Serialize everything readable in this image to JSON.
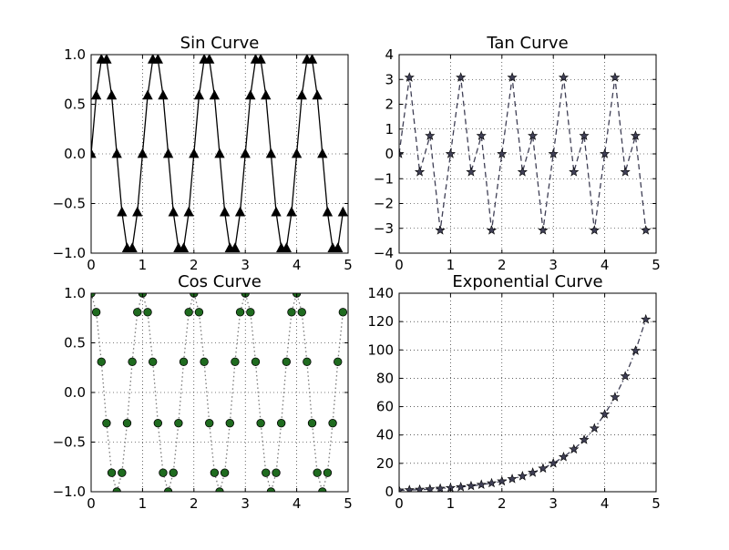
{
  "chart_data": [
    {
      "type": "line",
      "title": "Sin Curve",
      "xlabel": "",
      "ylabel": "",
      "xlim": [
        0,
        5
      ],
      "ylim": [
        -1.0,
        1.0
      ],
      "xticks": [
        0,
        1,
        2,
        3,
        4,
        5
      ],
      "yticks": [
        -1.0,
        -0.5,
        0.0,
        0.5,
        1.0
      ],
      "xtick_labels": [
        "0",
        "1",
        "2",
        "3",
        "4",
        "5"
      ],
      "ytick_labels": [
        "−1.0",
        "−0.5",
        "0.0",
        "0.5",
        "1.0"
      ],
      "grid": true,
      "series": [
        {
          "color": "#000000",
          "line_style": "solid",
          "marker": "triangle",
          "marker_color": "#000000",
          "x": [
            0.0,
            0.1,
            0.2,
            0.3,
            0.4,
            0.5,
            0.6,
            0.7,
            0.8,
            0.9,
            1.0,
            1.1,
            1.2,
            1.3,
            1.4,
            1.5,
            1.6,
            1.7,
            1.8,
            1.9,
            2.0,
            2.1,
            2.2,
            2.3,
            2.4,
            2.5,
            2.6,
            2.7,
            2.8,
            2.9,
            3.0,
            3.1,
            3.2,
            3.3,
            3.4,
            3.5,
            3.6,
            3.7,
            3.8,
            3.9,
            4.0,
            4.1,
            4.2,
            4.3,
            4.4,
            4.5,
            4.6,
            4.7,
            4.8,
            4.9
          ],
          "y": [
            0.0,
            0.588,
            0.951,
            0.951,
            0.588,
            0.0,
            -0.588,
            -0.951,
            -0.951,
            -0.588,
            0.0,
            0.588,
            0.951,
            0.951,
            0.588,
            0.0,
            -0.588,
            -0.951,
            -0.951,
            -0.588,
            0.0,
            0.588,
            0.951,
            0.951,
            0.588,
            0.0,
            -0.588,
            -0.951,
            -0.951,
            -0.588,
            0.0,
            0.588,
            0.951,
            0.951,
            0.588,
            0.0,
            -0.588,
            -0.951,
            -0.951,
            -0.588,
            0.0,
            0.588,
            0.951,
            0.951,
            0.588,
            0.0,
            -0.588,
            -0.951,
            -0.951,
            -0.588
          ]
        }
      ]
    },
    {
      "type": "line",
      "title": "Tan Curve",
      "xlabel": "",
      "ylabel": "",
      "xlim": [
        0,
        5
      ],
      "ylim": [
        -4,
        4
      ],
      "xticks": [
        0,
        1,
        2,
        3,
        4,
        5
      ],
      "yticks": [
        -4,
        -3,
        -2,
        -1,
        0,
        1,
        2,
        3,
        4
      ],
      "xtick_labels": [
        "0",
        "1",
        "2",
        "3",
        "4",
        "5"
      ],
      "ytick_labels": [
        "−4",
        "−3",
        "−2",
        "−1",
        "0",
        "1",
        "2",
        "3",
        "4"
      ],
      "grid": true,
      "series": [
        {
          "color": "#3f3f55",
          "line_style": "dashed",
          "marker": "star",
          "marker_color": "#3f3f55",
          "x": [
            0.0,
            0.2,
            0.4,
            0.6,
            0.8,
            1.0,
            1.2,
            1.4,
            1.6,
            1.8,
            2.0,
            2.2,
            2.4,
            2.6,
            2.8,
            3.0,
            3.2,
            3.4,
            3.6,
            3.8,
            4.0,
            4.2,
            4.4,
            4.6,
            4.8
          ],
          "y": [
            0.0,
            3.08,
            -0.73,
            0.73,
            -3.08,
            0.0,
            3.08,
            -0.73,
            0.73,
            -3.08,
            0.0,
            3.08,
            -0.73,
            0.73,
            -3.08,
            0.0,
            3.08,
            -0.73,
            0.73,
            -3.08,
            0.0,
            3.08,
            -0.73,
            0.73,
            -3.08
          ]
        }
      ]
    },
    {
      "type": "line",
      "title": "Cos Curve",
      "xlabel": "",
      "ylabel": "",
      "xlim": [
        0,
        5
      ],
      "ylim": [
        -1.0,
        1.0
      ],
      "xticks": [
        0,
        1,
        2,
        3,
        4,
        5
      ],
      "yticks": [
        -1.0,
        -0.5,
        0.0,
        0.5,
        1.0
      ],
      "xtick_labels": [
        "0",
        "1",
        "2",
        "3",
        "4",
        "5"
      ],
      "ytick_labels": [
        "−1.0",
        "−0.5",
        "0.0",
        "0.5",
        "1.0"
      ],
      "grid": true,
      "series": [
        {
          "color": "#7a7a7a",
          "line_style": "dotted",
          "marker": "circle",
          "marker_color": "#1f6b1f",
          "x": [
            0.0,
            0.1,
            0.2,
            0.3,
            0.4,
            0.5,
            0.6,
            0.7,
            0.8,
            0.9,
            1.0,
            1.1,
            1.2,
            1.3,
            1.4,
            1.5,
            1.6,
            1.7,
            1.8,
            1.9,
            2.0,
            2.1,
            2.2,
            2.3,
            2.4,
            2.5,
            2.6,
            2.7,
            2.8,
            2.9,
            3.0,
            3.1,
            3.2,
            3.3,
            3.4,
            3.5,
            3.6,
            3.7,
            3.8,
            3.9,
            4.0,
            4.1,
            4.2,
            4.3,
            4.4,
            4.5,
            4.6,
            4.7,
            4.8,
            4.9
          ],
          "y": [
            1.0,
            0.809,
            0.309,
            -0.309,
            -0.809,
            -1.0,
            -0.809,
            -0.309,
            0.309,
            0.809,
            1.0,
            0.809,
            0.309,
            -0.309,
            -0.809,
            -1.0,
            -0.809,
            -0.309,
            0.309,
            0.809,
            1.0,
            0.809,
            0.309,
            -0.309,
            -0.809,
            -1.0,
            -0.809,
            -0.309,
            0.309,
            0.809,
            1.0,
            0.809,
            0.309,
            -0.309,
            -0.809,
            -1.0,
            -0.809,
            -0.309,
            0.309,
            0.809,
            1.0,
            0.809,
            0.309,
            -0.309,
            -0.809,
            -1.0,
            -0.809,
            -0.309,
            0.309,
            0.809
          ]
        }
      ]
    },
    {
      "type": "line",
      "title": "Exponential Curve",
      "xlabel": "",
      "ylabel": "",
      "xlim": [
        0,
        5
      ],
      "ylim": [
        0,
        140
      ],
      "xticks": [
        0,
        1,
        2,
        3,
        4,
        5
      ],
      "yticks": [
        0,
        20,
        40,
        60,
        80,
        100,
        120,
        140
      ],
      "xtick_labels": [
        "0",
        "1",
        "2",
        "3",
        "4",
        "5"
      ],
      "ytick_labels": [
        "0",
        "20",
        "40",
        "60",
        "80",
        "100",
        "120",
        "140"
      ],
      "grid": true,
      "series": [
        {
          "color": "#3f3f55",
          "line_style": "dashdot",
          "marker": "star",
          "marker_color": "#3f3f55",
          "x": [
            0.0,
            0.2,
            0.4,
            0.6,
            0.8,
            1.0,
            1.2,
            1.4,
            1.6,
            1.8,
            2.0,
            2.2,
            2.4,
            2.6,
            2.8,
            3.0,
            3.2,
            3.4,
            3.6,
            3.8,
            4.0,
            4.2,
            4.4,
            4.6,
            4.8
          ],
          "y": [
            1.0,
            1.22,
            1.49,
            1.82,
            2.23,
            2.72,
            3.32,
            4.06,
            4.95,
            6.05,
            7.39,
            9.03,
            11.02,
            13.46,
            16.44,
            20.09,
            24.53,
            29.96,
            36.6,
            44.7,
            54.6,
            66.69,
            81.45,
            99.48,
            121.51
          ]
        }
      ]
    }
  ]
}
